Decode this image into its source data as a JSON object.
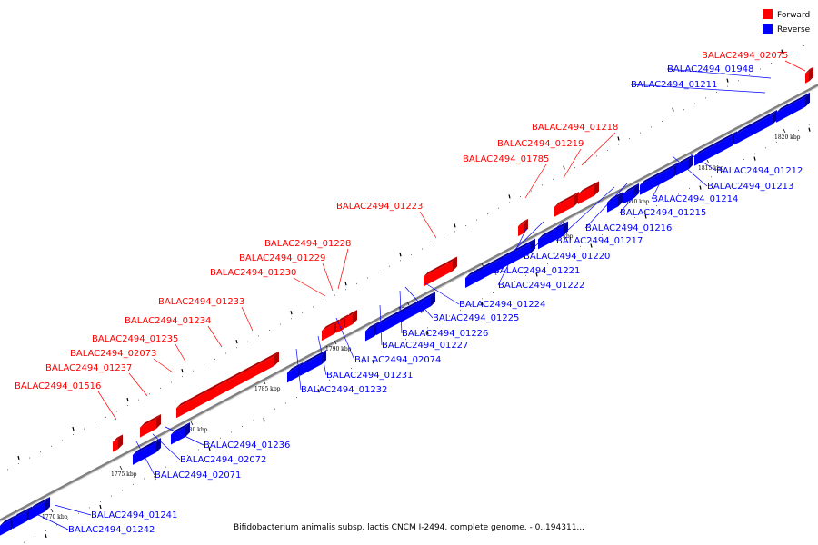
{
  "caption": "Bifidobacterium animalis subsp. lactis CNCM I-2494, complete genome. - 0..194311...",
  "legend": [
    {
      "name": "Forward",
      "color": "#ff0000"
    },
    {
      "name": "Reverse",
      "color": "#0000ff"
    }
  ],
  "colors": {
    "forward": "#ff0000",
    "reverse": "#0000ff",
    "backbone": "#808080"
  },
  "ticks": [
    "1770 kbp",
    "1775 kbp",
    "1780 kbp",
    "1785 kbp",
    "1790 kbp",
    "1795 kbp",
    "1800 kbp",
    "1805 kbp",
    "1810 kbp",
    "1815 kbp",
    "1820 kbp"
  ],
  "forward_genes": [
    "BALAC2494_02075",
    "BALAC2494_01218",
    "BALAC2494_01219",
    "BALAC2494_01785",
    "BALAC2494_01223",
    "BALAC2494_01228",
    "BALAC2494_01229",
    "BALAC2494_01230",
    "BALAC2494_01233",
    "BALAC2494_01234",
    "BALAC2494_01235",
    "BALAC2494_02073",
    "BALAC2494_01237",
    "BALAC2494_01516"
  ],
  "reverse_genes": [
    "BALAC2494_01948",
    "BALAC2494_01211",
    "BALAC2494_01212",
    "BALAC2494_01213",
    "BALAC2494_01214",
    "BALAC2494_01215",
    "BALAC2494_01216",
    "BALAC2494_01217",
    "BALAC2494_01220",
    "BALAC2494_01221",
    "BALAC2494_01222",
    "BALAC2494_01224",
    "BALAC2494_01225",
    "BALAC2494_01226",
    "BALAC2494_01227",
    "BALAC2494_02074",
    "BALAC2494_01231",
    "BALAC2494_01232",
    "BALAC2494_01236",
    "BALAC2494_02072",
    "BALAC2494_02071",
    "BALAC2494_01241",
    "BALAC2494_01242"
  ]
}
